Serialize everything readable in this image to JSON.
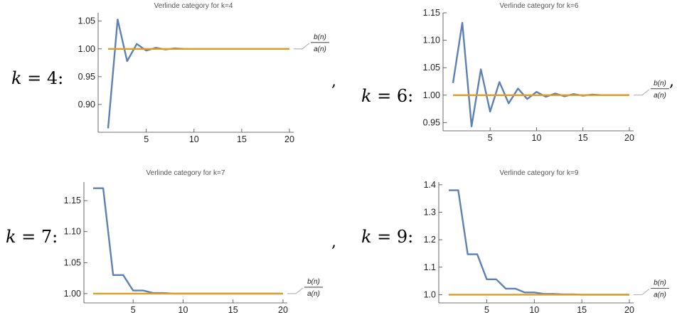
{
  "labels": [
    {
      "var": "k",
      "text": " = 4:"
    },
    {
      "var": "k",
      "text": " = 6:"
    },
    {
      "var": "k",
      "text": " = 7:"
    },
    {
      "var": "k",
      "text": " = 9:"
    }
  ],
  "commas": [
    ",",
    ","
  ],
  "colors": {
    "blue": "#5E81B5",
    "orange": "#E19C24",
    "axis": "#444444"
  },
  "chart_data": [
    {
      "type": "line",
      "title": "Verlinde category for k=4",
      "xlabel": "",
      "ylabel": "",
      "xlim": [
        0,
        20
      ],
      "ylim": [
        0.85,
        1.065
      ],
      "xticks": [
        5,
        10,
        15,
        20
      ],
      "xtick_labels": [
        "5",
        "10",
        "15",
        "20"
      ],
      "yticks": [
        0.9,
        0.95,
        1.0,
        1.05
      ],
      "ytick_labels": [
        "0.90",
        "0.95",
        "1.00",
        "1.05"
      ],
      "legend": {
        "num": "b(n)",
        "den": "a(n)"
      },
      "series": [
        {
          "color": "blue",
          "x": [
            1,
            2,
            3,
            4,
            5,
            6,
            7,
            8,
            9,
            10,
            11,
            12,
            13,
            14,
            15,
            16,
            17,
            18,
            19,
            20
          ],
          "values": [
            0.857,
            1.053,
            0.978,
            1.009,
            0.997,
            1.002,
            0.999,
            1.001,
            1.0,
            1.0,
            1.0,
            1.0,
            1.0,
            1.0,
            1.0,
            1.0,
            1.0,
            1.0,
            1.0,
            1.0
          ]
        },
        {
          "color": "orange",
          "x": [
            1,
            20
          ],
          "values": [
            1.0,
            1.0
          ]
        }
      ]
    },
    {
      "type": "line",
      "title": "Verlinde category for k=6",
      "xlabel": "",
      "ylabel": "",
      "xlim": [
        0,
        20
      ],
      "ylim": [
        0.935,
        1.15
      ],
      "xticks": [
        5,
        10,
        15,
        20
      ],
      "xtick_labels": [
        "5",
        "10",
        "15",
        "20"
      ],
      "yticks": [
        0.95,
        1.0,
        1.05,
        1.1,
        1.15
      ],
      "ytick_labels": [
        "0.95",
        "1.00",
        "1.05",
        "1.10",
        "1.15"
      ],
      "legend": {
        "num": "b(n)",
        "den": "a(n)"
      },
      "series": [
        {
          "color": "blue",
          "x": [
            1,
            2,
            3,
            4,
            5,
            6,
            7,
            8,
            9,
            10,
            11,
            12,
            13,
            14,
            15,
            16,
            17,
            18,
            19,
            20
          ],
          "values": [
            1.022,
            1.132,
            0.943,
            1.047,
            0.97,
            1.024,
            0.985,
            1.012,
            0.993,
            1.006,
            0.997,
            1.003,
            0.998,
            1.002,
            0.999,
            1.001,
            1.0,
            1.0,
            1.0,
            1.0
          ]
        },
        {
          "color": "orange",
          "x": [
            1,
            20
          ],
          "values": [
            1.0,
            1.0
          ]
        }
      ]
    },
    {
      "type": "line",
      "title": "Verlinde category for k=7",
      "xlabel": "",
      "ylabel": "",
      "xlim": [
        0,
        20
      ],
      "ylim": [
        0.985,
        1.18
      ],
      "xticks": [
        5,
        10,
        15,
        20
      ],
      "xtick_labels": [
        "5",
        "10",
        "15",
        "20"
      ],
      "yticks": [
        1.0,
        1.05,
        1.1,
        1.15
      ],
      "ytick_labels": [
        "1.00",
        "1.05",
        "1.10",
        "1.15"
      ],
      "legend": {
        "num": "b(n)",
        "den": "a(n)"
      },
      "series": [
        {
          "color": "blue",
          "x": [
            1,
            2,
            3,
            4,
            5,
            6,
            7,
            8,
            9,
            10,
            11,
            12,
            13,
            14,
            15,
            16,
            17,
            18,
            19,
            20
          ],
          "values": [
            1.17,
            1.17,
            1.03,
            1.03,
            1.005,
            1.005,
            1.001,
            1.001,
            1.0,
            1.0,
            1.0,
            1.0,
            1.0,
            1.0,
            1.0,
            1.0,
            1.0,
            1.0,
            1.0,
            1.0
          ]
        },
        {
          "color": "orange",
          "x": [
            1,
            20
          ],
          "values": [
            1.0,
            1.0
          ]
        }
      ]
    },
    {
      "type": "line",
      "title": "Verlinde category for k=9",
      "xlabel": "",
      "ylabel": "",
      "xlim": [
        0,
        20
      ],
      "ylim": [
        0.97,
        1.41
      ],
      "xticks": [
        5,
        10,
        15,
        20
      ],
      "xtick_labels": [
        "5",
        "10",
        "15",
        "20"
      ],
      "yticks": [
        1.0,
        1.1,
        1.2,
        1.3,
        1.4
      ],
      "ytick_labels": [
        "1.0",
        "1.1",
        "1.2",
        "1.3",
        "1.4"
      ],
      "legend": {
        "num": "b(n)",
        "den": "a(n)"
      },
      "series": [
        {
          "color": "blue",
          "x": [
            1,
            2,
            3,
            4,
            5,
            6,
            7,
            8,
            9,
            10,
            11,
            12,
            13,
            14,
            15,
            16,
            17,
            18,
            19,
            20
          ],
          "values": [
            1.38,
            1.38,
            1.147,
            1.147,
            1.056,
            1.056,
            1.022,
            1.022,
            1.008,
            1.008,
            1.003,
            1.003,
            1.001,
            1.001,
            1.0,
            1.0,
            1.0,
            1.0,
            1.0,
            1.0
          ]
        },
        {
          "color": "orange",
          "x": [
            1,
            20
          ],
          "values": [
            1.0,
            1.0
          ]
        }
      ]
    }
  ]
}
